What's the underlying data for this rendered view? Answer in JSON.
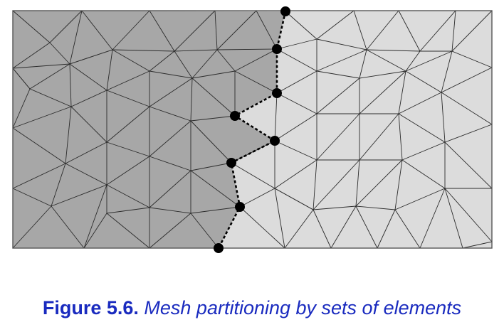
{
  "caption": {
    "label": "Figure 5.6.",
    "text": " Mesh partitioning by sets of elements"
  },
  "colors": {
    "left_partition": "#a7a7a7",
    "right_partition": "#dcdcdc",
    "mesh_lines": "#2b2b2b",
    "border": "#555555",
    "interface_nodes": "#000000",
    "caption": "#1a2bbf"
  }
}
